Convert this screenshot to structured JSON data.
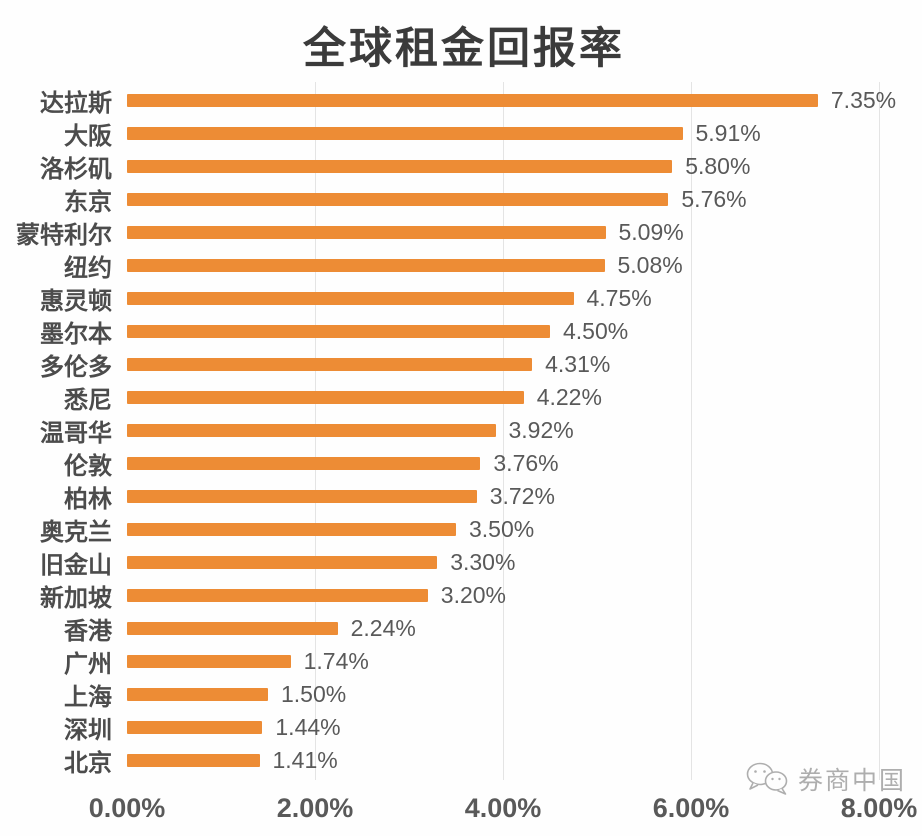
{
  "chart_data": {
    "type": "bar",
    "orientation": "horizontal",
    "title": "全球租金回报率",
    "categories": [
      "达拉斯",
      "大阪",
      "洛杉矶",
      "东京",
      "蒙特利尔",
      "纽约",
      "惠灵顿",
      "墨尔本",
      "多伦多",
      "悉尼",
      "温哥华",
      "伦敦",
      "柏林",
      "奥克兰",
      "旧金山",
      "新加坡",
      "香港",
      "广州",
      "上海",
      "深圳",
      "北京"
    ],
    "values": [
      7.35,
      5.91,
      5.8,
      5.76,
      5.09,
      5.08,
      4.75,
      4.5,
      4.31,
      4.22,
      3.92,
      3.76,
      3.72,
      3.5,
      3.3,
      3.2,
      2.24,
      1.74,
      1.5,
      1.44,
      1.41
    ],
    "value_labels": [
      "7.35%",
      "5.91%",
      "5.80%",
      "5.76%",
      "5.09%",
      "5.08%",
      "4.75%",
      "4.50%",
      "4.31%",
      "4.22%",
      "3.92%",
      "3.76%",
      "3.72%",
      "3.50%",
      "3.30%",
      "3.20%",
      "2.24%",
      "1.74%",
      "1.50%",
      "1.44%",
      "1.41%"
    ],
    "xlabel": "",
    "ylabel": "",
    "xlim": [
      0,
      8
    ],
    "x_ticks": [
      "0.00%",
      "2.00%",
      "4.00%",
      "6.00%",
      "8.00%"
    ],
    "grid": "vertical-light",
    "legend": "none",
    "bar_color": "#ED8C35",
    "gridline_color": "#e4e4e4"
  },
  "watermark": {
    "text": "券商中国",
    "icon": "wechat-icon"
  }
}
